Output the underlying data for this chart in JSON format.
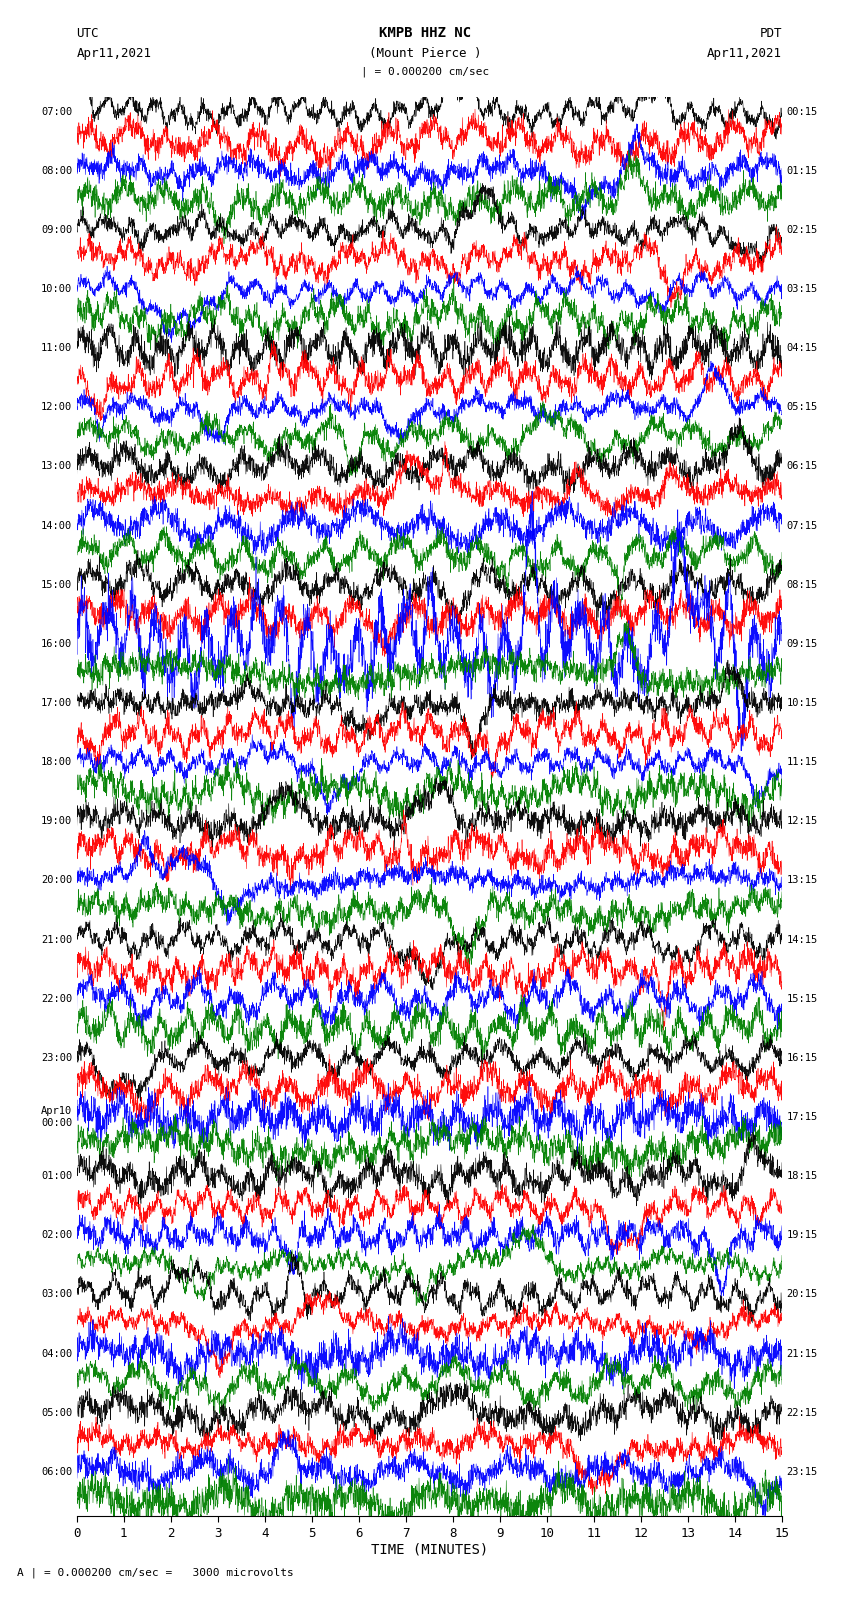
{
  "title_line1": "KMPB HHZ NC",
  "title_line2": "(Mount Pierce )",
  "title_line3": "| = 0.000200 cm/sec",
  "left_header_line1": "UTC",
  "left_header_line2": "Apr11,2021",
  "right_header_line1": "PDT",
  "right_header_line2": "Apr11,2021",
  "xlabel": "TIME (MINUTES)",
  "footer": "A | = 0.000200 cm/sec =   3000 microvolts",
  "xlim": [
    0,
    15
  ],
  "xticks": [
    0,
    1,
    2,
    3,
    4,
    5,
    6,
    7,
    8,
    9,
    10,
    11,
    12,
    13,
    14,
    15
  ],
  "num_traces": 48,
  "trace_colors": [
    "black",
    "red",
    "blue",
    "green"
  ],
  "left_times": [
    "07:00",
    "",
    "08:00",
    "",
    "09:00",
    "",
    "10:00",
    "",
    "11:00",
    "",
    "12:00",
    "",
    "13:00",
    "",
    "14:00",
    "",
    "15:00",
    "",
    "16:00",
    "",
    "17:00",
    "",
    "18:00",
    "",
    "19:00",
    "",
    "20:00",
    "",
    "21:00",
    "",
    "22:00",
    "",
    "23:00",
    "",
    "Apr10\n00:00",
    "",
    "01:00",
    "",
    "02:00",
    "",
    "03:00",
    "",
    "04:00",
    "",
    "05:00",
    "",
    "06:00",
    ""
  ],
  "right_times": [
    "00:15",
    "",
    "01:15",
    "",
    "02:15",
    "",
    "03:15",
    "",
    "04:15",
    "",
    "05:15",
    "",
    "06:15",
    "",
    "07:15",
    "",
    "08:15",
    "",
    "09:15",
    "",
    "10:15",
    "",
    "11:15",
    "",
    "12:15",
    "",
    "13:15",
    "",
    "14:15",
    "",
    "15:15",
    "",
    "16:15",
    "",
    "17:15",
    "",
    "18:15",
    "",
    "19:15",
    "",
    "20:15",
    "",
    "21:15",
    "",
    "22:15",
    "",
    "23:15",
    ""
  ],
  "background_color": "white",
  "noise_seed": 42,
  "big_amplitude_trace": 18
}
